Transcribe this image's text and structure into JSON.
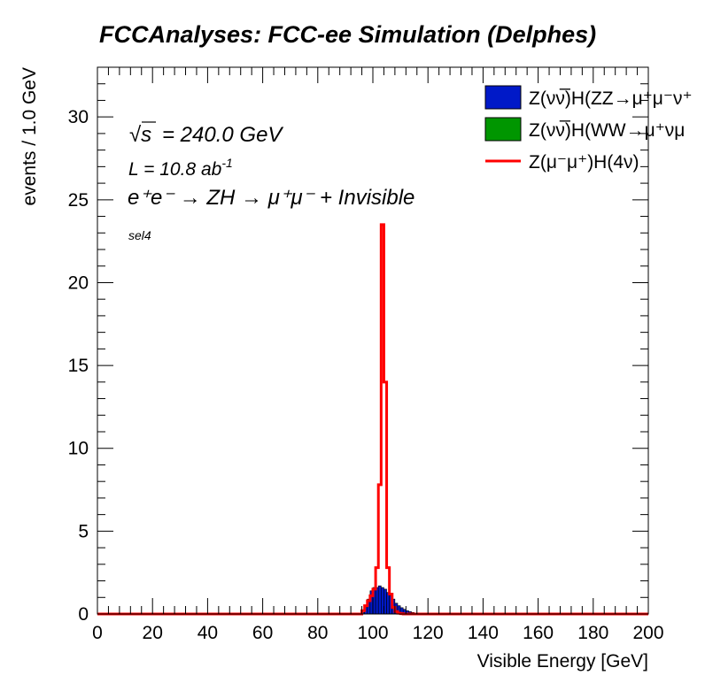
{
  "chart_data": {
    "type": "bar",
    "title": "FCCAnalyses: FCC-ee Simulation (Delphes)",
    "xlabel": "Visible Energy [GeV]",
    "ylabel": "events / 1.0 GeV",
    "xlim": [
      0,
      200
    ],
    "ylim": [
      0,
      33
    ],
    "xticks": [
      "0",
      "20",
      "40",
      "60",
      "80",
      "100",
      "120",
      "140",
      "160",
      "180",
      "200"
    ],
    "yticks": [
      "0",
      "5",
      "10",
      "15",
      "20",
      "25",
      "30"
    ],
    "annotations": {
      "sqrt_s": "= 240.0 GeV",
      "lumi": "L = 10.8 ab",
      "lumi_exp": "-1",
      "process": "e⁺e⁻ → ZH → μ⁺μ⁻ + Invisible",
      "selection": "sel4"
    },
    "legend_placement": "top-right",
    "series": [
      {
        "name": "Z(νν̅)H(ZZ→μ⁺μ⁻ν⁺",
        "kind": "filled",
        "color": "#0019c8",
        "bin_width": 1,
        "x": [
          96,
          97,
          98,
          99,
          100,
          101,
          102,
          103,
          104,
          105,
          106,
          107,
          108,
          109,
          110,
          111,
          112,
          113,
          114,
          115,
          116,
          117,
          118
        ],
        "values": [
          0.1,
          0.4,
          0.9,
          1.4,
          1.6,
          1.6,
          1.7,
          1.6,
          1.5,
          1.3,
          1.1,
          0.9,
          0.65,
          0.5,
          0.38,
          0.28,
          0.2,
          0.14,
          0.09,
          0.06,
          0.04,
          0.02,
          0.01
        ]
      },
      {
        "name": "Z(νν̅)H(WW→μ⁺νμ",
        "kind": "filled",
        "color": "#009600",
        "bin_width": 1,
        "x": [],
        "values": []
      },
      {
        "name": "Z(μ⁻μ⁺)H(4ν)",
        "kind": "step",
        "color": "#ff0000",
        "bin_width": 1,
        "x": [
          96,
          97,
          98,
          99,
          100,
          101,
          102,
          103,
          104,
          105,
          106,
          107,
          108,
          109,
          110,
          111
        ],
        "values": [
          0.2,
          0.5,
          0.8,
          1.1,
          1.5,
          2.8,
          7.8,
          23.5,
          14.0,
          2.8,
          1.2,
          0.4,
          0.15,
          0.05,
          0.02,
          0.0
        ]
      }
    ]
  }
}
